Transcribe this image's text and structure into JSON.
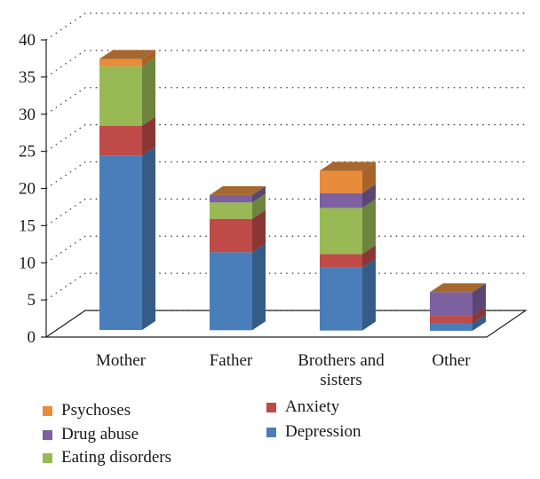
{
  "chart_data": {
    "type": "bar",
    "stacked": true,
    "three_d": true,
    "title": "",
    "xlabel": "",
    "ylabel": "",
    "ylim": [
      0,
      40
    ],
    "yticks": [
      "0",
      "5",
      "10",
      "15",
      "20",
      "25",
      "30",
      "35",
      "40"
    ],
    "grid": "dotted horizontal",
    "categories": [
      "Mother",
      "Father",
      "Brothers and sisters",
      "Other"
    ],
    "category_lines": [
      [
        "Mother"
      ],
      [
        "Father"
      ],
      [
        "Brothers and",
        "sisters"
      ],
      [
        "Other"
      ]
    ],
    "series": [
      {
        "name": "Depression",
        "color": "#4a7ebb",
        "values": [
          23.5,
          10.5,
          8.5,
          1
        ]
      },
      {
        "name": "Anxiety",
        "color": "#be4b48",
        "values": [
          4,
          4.5,
          1.8,
          1
        ]
      },
      {
        "name": "Eating disorders",
        "color": "#98b954",
        "values": [
          8,
          2.2,
          6.2,
          0
        ]
      },
      {
        "name": "Drug abuse",
        "color": "#7d60a0",
        "values": [
          0,
          1,
          2,
          3.2
        ]
      },
      {
        "name": "Psychoses",
        "color": "#e88b3a",
        "values": [
          1,
          0,
          3,
          0
        ]
      }
    ],
    "legend": {
      "placement": "bottom",
      "entries": [
        "Psychoses",
        "Anxiety",
        "Drug abuse",
        "Depression",
        "Eating disorders"
      ]
    }
  }
}
